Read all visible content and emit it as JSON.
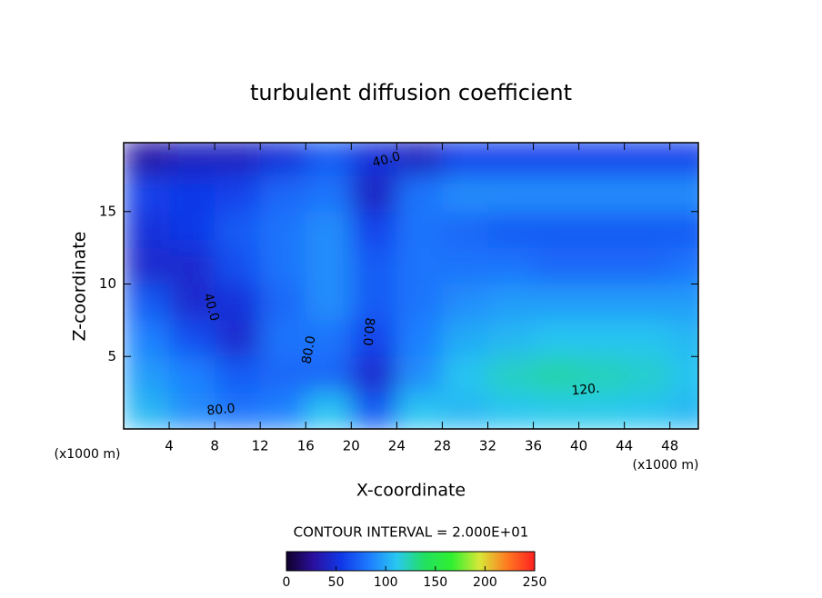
{
  "chart_data": {
    "type": "contour",
    "title": "turbulent diffusion coefficient",
    "xlabel": "X-coordinate",
    "ylabel": "Z-coordinate",
    "x_unit": "(x1000 m)",
    "y_unit": "(x1000 m)",
    "xlim": [
      0,
      50.5
    ],
    "ylim": [
      0,
      19.75
    ],
    "xticks": [
      4,
      8,
      12,
      16,
      20,
      24,
      28,
      32,
      36,
      40,
      44,
      48
    ],
    "yticks": [
      5,
      10,
      15
    ],
    "x": [
      2,
      6,
      10,
      14,
      18,
      22,
      26,
      30,
      34,
      38,
      42,
      46,
      50
    ],
    "y": [
      1.25,
      3.75,
      6.25,
      8.75,
      11.25,
      13.75,
      16.25,
      18.75
    ],
    "z": [
      [
        105,
        90,
        80,
        85,
        110,
        70,
        110,
        105,
        110,
        112,
        112,
        110,
        105
      ],
      [
        95,
        85,
        70,
        75,
        75,
        45,
        90,
        110,
        120,
        125,
        122,
        118,
        110
      ],
      [
        85,
        65,
        45,
        80,
        80,
        60,
        85,
        100,
        105,
        110,
        110,
        110,
        105
      ],
      [
        70,
        45,
        50,
        75,
        90,
        70,
        80,
        90,
        95,
        95,
        95,
        95,
        95
      ],
      [
        45,
        45,
        65,
        80,
        90,
        70,
        80,
        80,
        80,
        75,
        75,
        75,
        80
      ],
      [
        50,
        55,
        70,
        80,
        90,
        60,
        80,
        75,
        70,
        70,
        70,
        70,
        70
      ],
      [
        60,
        55,
        60,
        75,
        80,
        40,
        80,
        90,
        90,
        90,
        90,
        90,
        90
      ],
      [
        30,
        40,
        40,
        50,
        70,
        50,
        40,
        60,
        60,
        60,
        60,
        60,
        60
      ]
    ],
    "contour_labels": [
      {
        "value": 40,
        "label": "40.0"
      },
      {
        "value": 40,
        "label": "40.0"
      },
      {
        "value": 80,
        "label": "80.0"
      },
      {
        "value": 80,
        "label": "80.0"
      },
      {
        "value": 80,
        "label": "80.0"
      },
      {
        "value": 120,
        "label": "120."
      }
    ],
    "contour_interval": "CONTOUR INTERVAL = 2.000E+01",
    "colorbar_lim": [
      0,
      250
    ],
    "colorbar_ticks": [
      0,
      50,
      100,
      150,
      200,
      250
    ],
    "colormap": [
      "#10002a",
      "#2a10a0",
      "#1038e8",
      "#1e7cff",
      "#28c8f0",
      "#22e060",
      "#30f030",
      "#d8e838",
      "#ff7a20",
      "#ff2020"
    ]
  }
}
